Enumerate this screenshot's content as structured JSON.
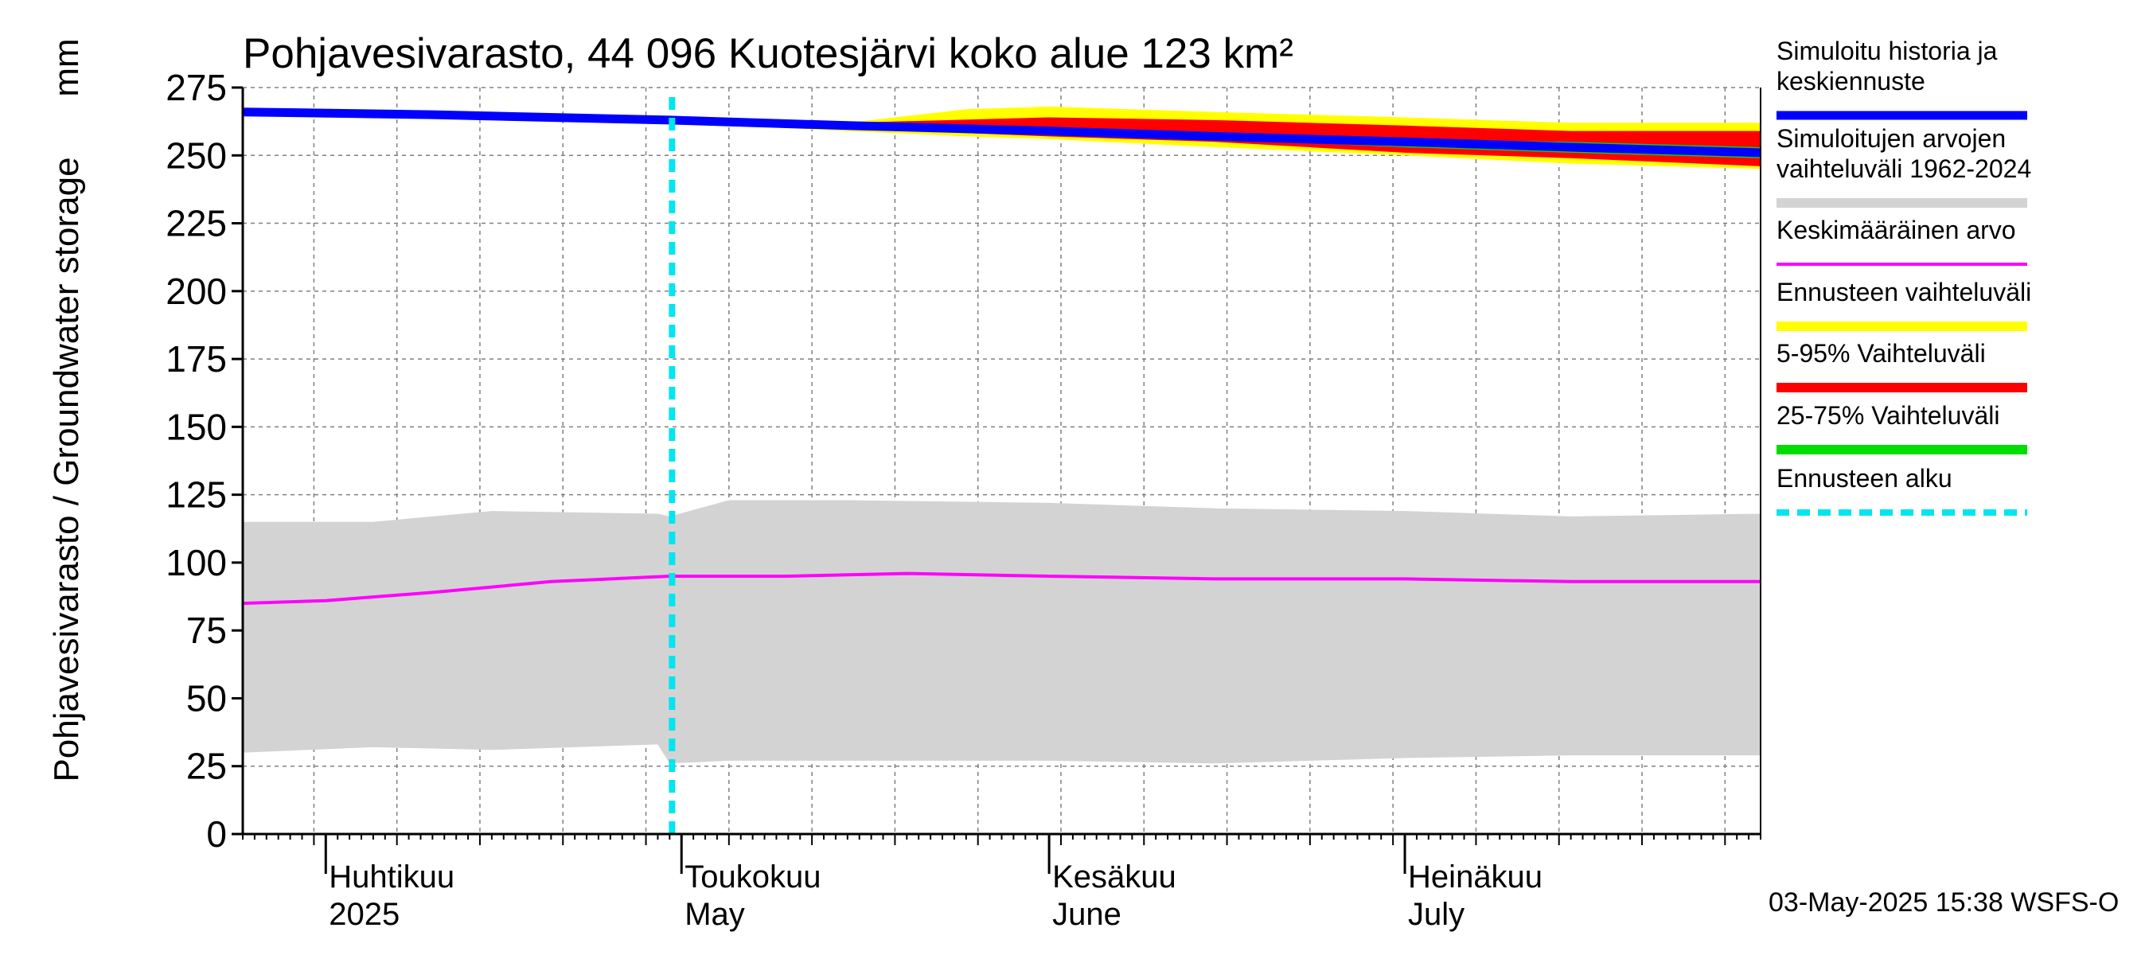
{
  "chart_data": {
    "type": "area",
    "title": "Pohjavesivarasto, 44 096 Kuotesjärvi koko alue 123 km²",
    "ylabel": "Pohjavesivarasto / Groundwater storage",
    "yunit": "mm",
    "ylim": [
      0,
      275
    ],
    "yticks": [
      0,
      25,
      50,
      75,
      100,
      125,
      150,
      175,
      200,
      225,
      250,
      275
    ],
    "grid": true,
    "x_start": "2025-03-25",
    "x_end": "2025-07-31",
    "x_unit": "day",
    "month_labels": [
      {
        "date": "2025-04-01",
        "fi": "Huhtikuu",
        "en": "2025"
      },
      {
        "date": "2025-05-01",
        "fi": "Toukokuu",
        "en": "May"
      },
      {
        "date": "2025-06-01",
        "fi": "Kesäkuu",
        "en": "June"
      },
      {
        "date": "2025-07-01",
        "fi": "Heinäkuu",
        "en": "July"
      }
    ],
    "forecast_start": "2025-04-30",
    "series": [
      {
        "name": "Simuloitujen arvojen vaihteluväli 1962-2024",
        "kind": "band",
        "color": "#d3d3d3",
        "x": [
          "2025-03-25",
          "2025-04-05",
          "2025-04-15",
          "2025-04-29",
          "2025-04-30",
          "2025-05-05",
          "2025-05-15",
          "2025-06-01",
          "2025-06-15",
          "2025-07-01",
          "2025-07-15",
          "2025-07-31"
        ],
        "lower": [
          30,
          32,
          31,
          33,
          26,
          27,
          27,
          27,
          26,
          28,
          29,
          29
        ],
        "upper": [
          115,
          115,
          119,
          118,
          117,
          123,
          123,
          122,
          120,
          119,
          117,
          118
        ]
      },
      {
        "name": "Keskimääräinen arvo",
        "kind": "line",
        "color": "#ff00ff",
        "x": [
          "2025-03-25",
          "2025-04-01",
          "2025-04-10",
          "2025-04-20",
          "2025-04-30",
          "2025-05-10",
          "2025-05-20",
          "2025-06-01",
          "2025-06-15",
          "2025-07-01",
          "2025-07-15",
          "2025-07-31"
        ],
        "values": [
          85,
          86,
          89,
          93,
          95,
          95,
          96,
          95,
          94,
          94,
          93,
          93
        ]
      },
      {
        "name": "Ennusteen vaihteluväli",
        "kind": "band",
        "color": "#ffff00",
        "x": [
          "2025-04-30",
          "2025-05-15",
          "2025-05-25",
          "2025-06-01",
          "2025-06-15",
          "2025-07-01",
          "2025-07-15",
          "2025-07-31"
        ],
        "lower": [
          262,
          259,
          257,
          256,
          253,
          250,
          247,
          245
        ],
        "upper": [
          263,
          262,
          267,
          268,
          266,
          264,
          262,
          262
        ]
      },
      {
        "name": "5-95% Vaihteluväli",
        "kind": "band",
        "color": "#ff0000",
        "x": [
          "2025-04-30",
          "2025-05-15",
          "2025-06-01",
          "2025-06-15",
          "2025-07-01",
          "2025-07-15",
          "2025-07-31"
        ],
        "lower": [
          262,
          260,
          257,
          255,
          251,
          249,
          246
        ],
        "upper": [
          263,
          262,
          264,
          263,
          261,
          259,
          259
        ]
      },
      {
        "name": "25-75% Vaihteluväli",
        "kind": "band",
        "color": "#00dd00",
        "x": [
          "2025-04-30",
          "2025-05-15",
          "2025-06-01",
          "2025-06-15",
          "2025-07-01",
          "2025-07-15",
          "2025-07-31"
        ],
        "lower": [
          262,
          260,
          258,
          256,
          253,
          251,
          249
        ],
        "upper": [
          263,
          261,
          260,
          258,
          256,
          255,
          253
        ]
      },
      {
        "name": "Simuloitu historia ja keskiennuste",
        "kind": "line",
        "color": "#0000ff",
        "x": [
          "2025-03-25",
          "2025-04-10",
          "2025-04-30",
          "2025-05-15",
          "2025-06-01",
          "2025-06-15",
          "2025-07-01",
          "2025-07-15",
          "2025-07-31"
        ],
        "values": [
          266,
          265,
          263,
          261,
          259,
          257,
          255,
          253,
          251
        ]
      }
    ]
  },
  "legend": [
    {
      "label": "Simuloitu historia ja keskiennuste",
      "color": "#0000ff",
      "style": "solid"
    },
    {
      "label": "Simuloitujen arvojen vaihteluväli 1962-2024",
      "color": "#d3d3d3",
      "style": "solid"
    },
    {
      "label": "Keskimääräinen arvo",
      "color": "#ff00ff",
      "style": "thin"
    },
    {
      "label": "Ennusteen vaihteluväli",
      "color": "#ffff00",
      "style": "solid"
    },
    {
      "label": "5-95% Vaihteluväli",
      "color": "#ff0000",
      "style": "solid"
    },
    {
      "label": "25-75% Vaihteluväli",
      "color": "#00dd00",
      "style": "solid"
    },
    {
      "label": "Ennusteen alku",
      "color": "#00e5ee",
      "style": "dashed"
    }
  ],
  "footer": {
    "timestamp": "03-May-2025 15:38 WSFS-O"
  }
}
